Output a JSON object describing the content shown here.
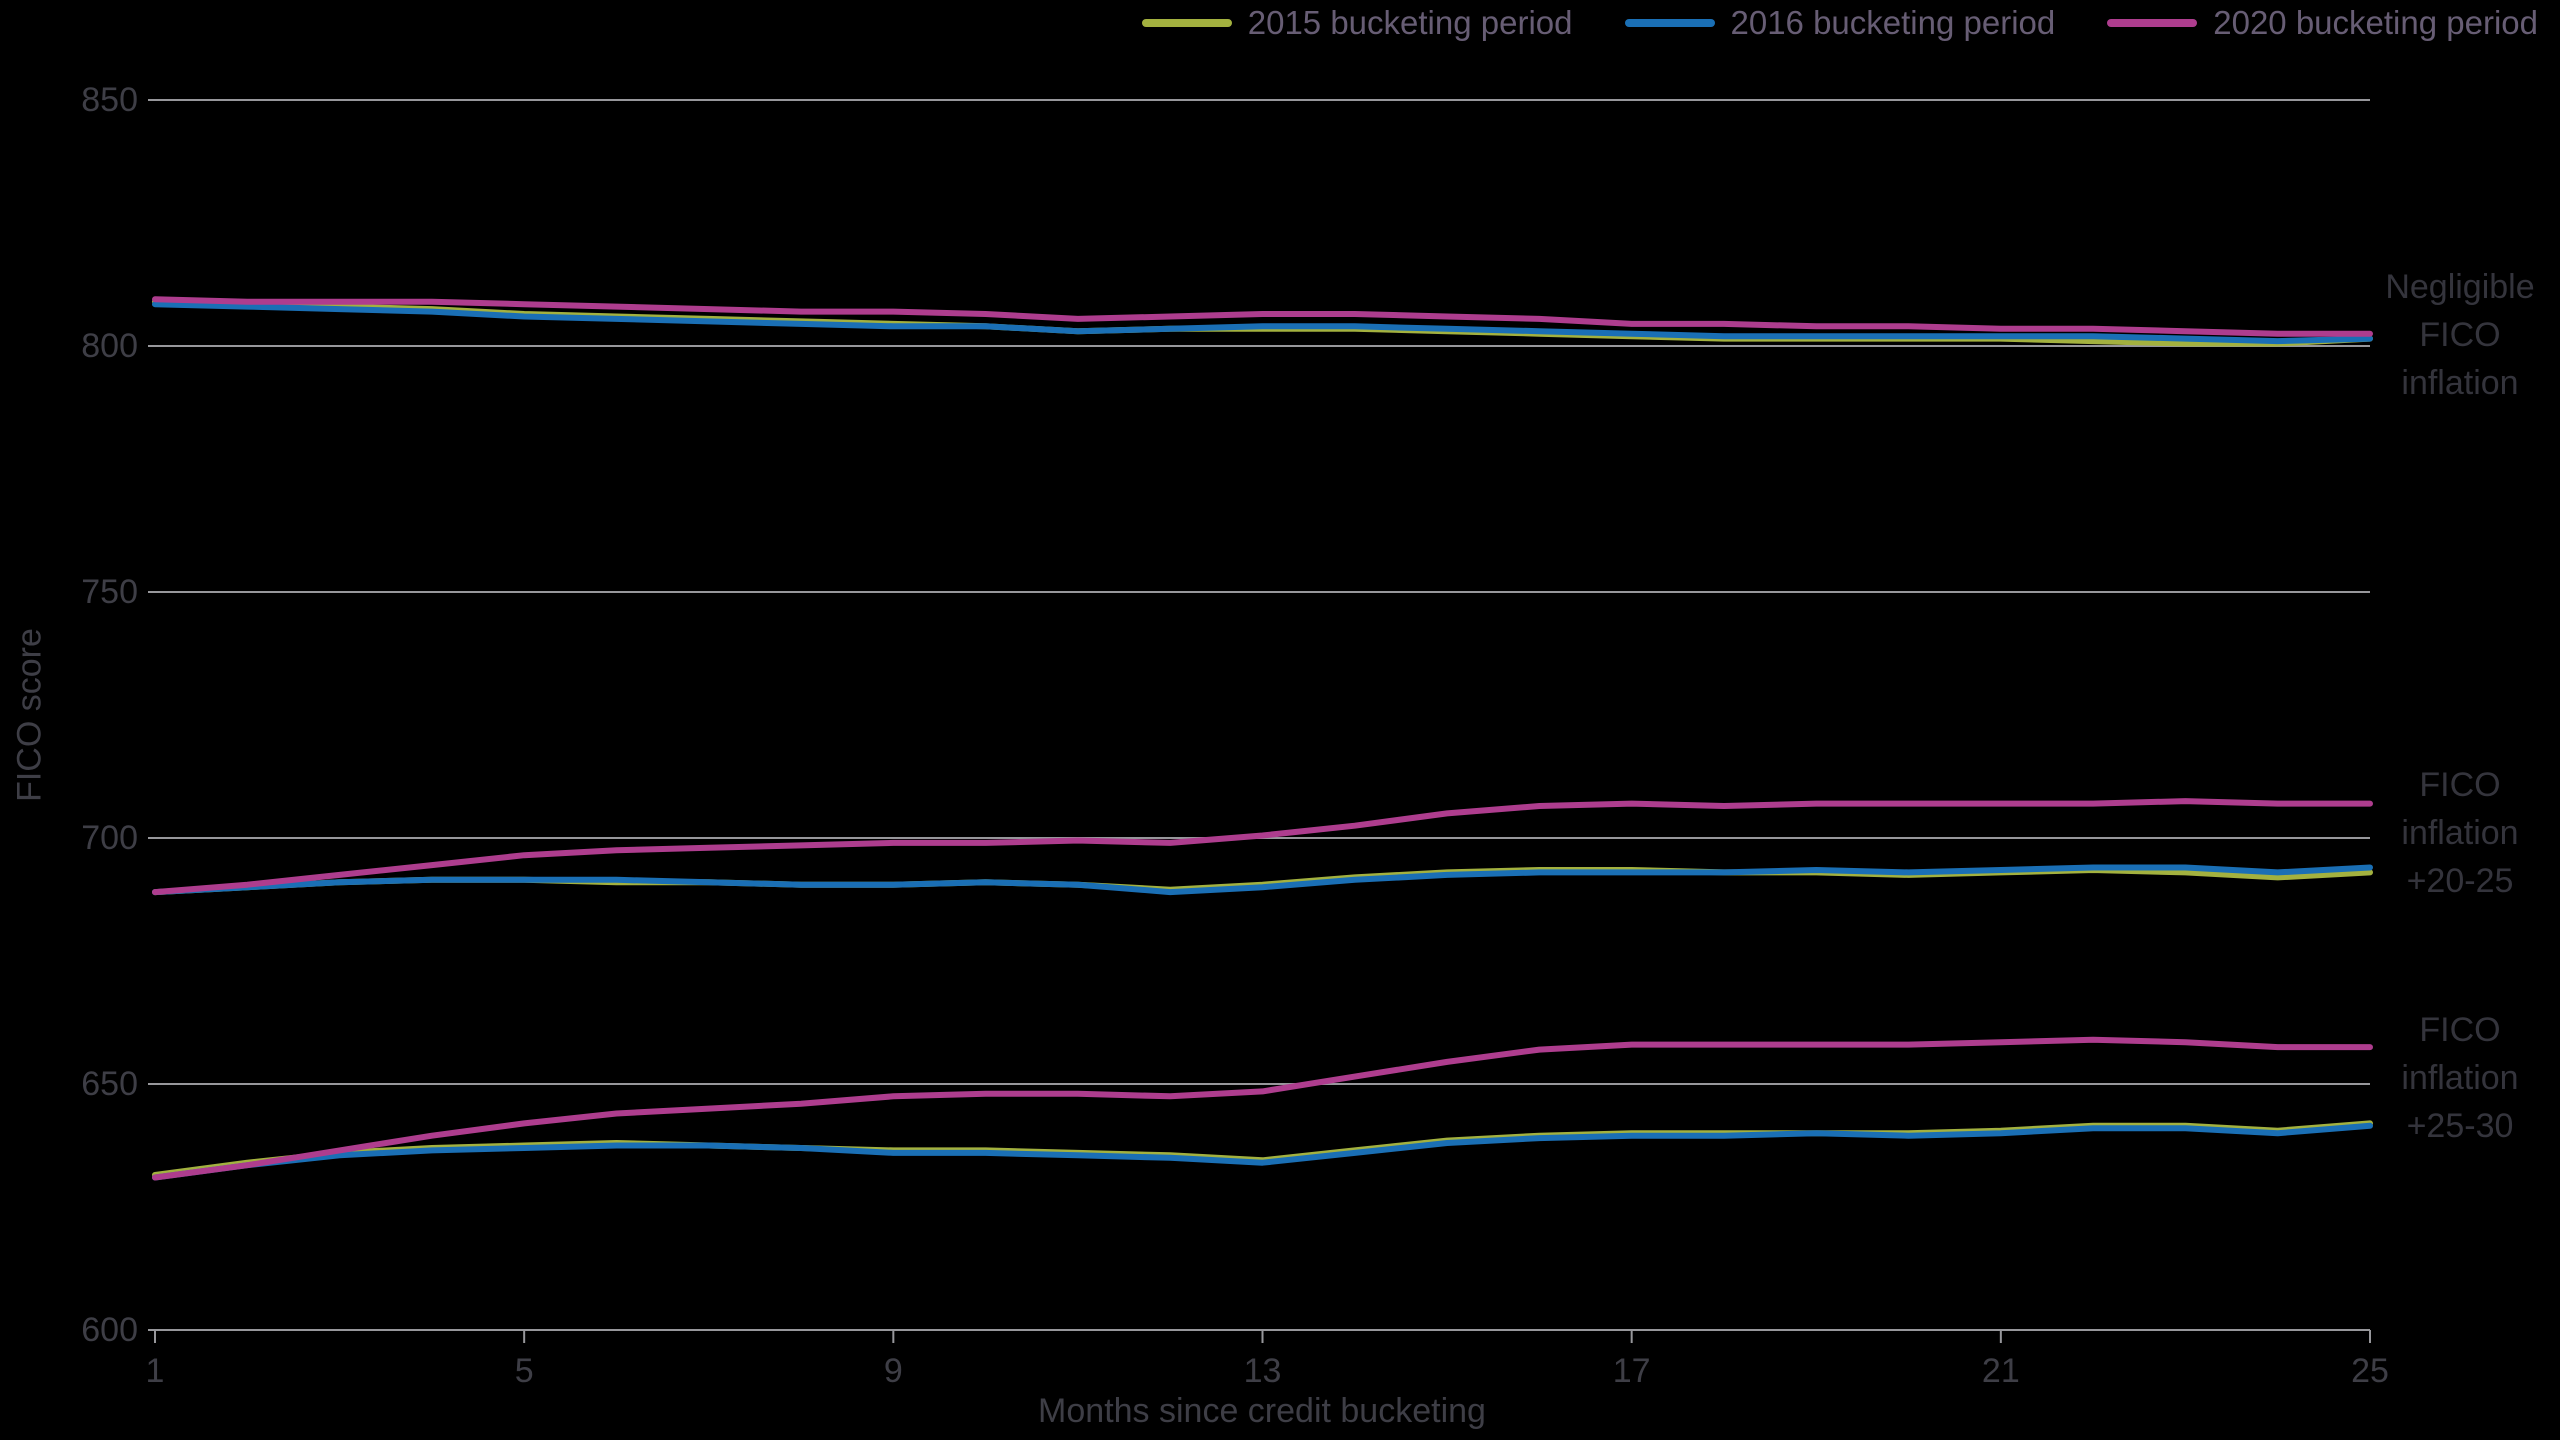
{
  "colors": {
    "background": "#000000",
    "grid": "#97979b",
    "axis_text": "#3e3e46",
    "annotation_text": "#34343c",
    "legend_text": "#675d74",
    "series_2015": "#a3b13f",
    "series_2016": "#1a6fb5",
    "series_2020": "#ae3d8e"
  },
  "legend": {
    "items": [
      {
        "label": "2015 bucketing period",
        "color": "#a3b13f"
      },
      {
        "label": "2016 bucketing period",
        "color": "#1a6fb5"
      },
      {
        "label": "2020 bucketing period",
        "color": "#ae3d8e"
      }
    ]
  },
  "axes": {
    "y_label": "FICO score",
    "x_label": "Months since credit bucketing",
    "y_ticks": [
      850,
      800,
      750,
      700,
      650,
      600
    ],
    "x_ticks": [
      1,
      5,
      9,
      13,
      17,
      21,
      25
    ]
  },
  "annotations": [
    {
      "name": "negligible-fico-inflation",
      "lines": [
        "Negligible",
        "FICO",
        "inflation"
      ]
    },
    {
      "name": "fico-inflation-plus-20-25",
      "lines": [
        "FICO",
        "inflation",
        "+20-25"
      ]
    },
    {
      "name": "fico-inflation-plus-25-30",
      "lines": [
        "FICO",
        "inflation",
        "+25-30"
      ]
    }
  ],
  "chart_data": {
    "type": "line",
    "title": "",
    "xlabel": "Months since credit bucketing",
    "ylabel": "FICO score",
    "xlim": [
      1,
      25
    ],
    "ylim": [
      600,
      850
    ],
    "grid": "horizontal",
    "legend_position": "top-right",
    "x": [
      1,
      2,
      3,
      4,
      5,
      6,
      7,
      8,
      9,
      10,
      11,
      12,
      13,
      14,
      15,
      16,
      17,
      18,
      19,
      20,
      21,
      22,
      23,
      24,
      25
    ],
    "groups": [
      {
        "label": "Negligible FICO inflation",
        "series": [
          {
            "name": "2015 bucketing period",
            "color": "#a3b13f",
            "values": [
              809,
              808.5,
              808,
              807.5,
              806.5,
              806,
              805.5,
              805,
              804.5,
              804,
              803,
              803.5,
              803.5,
              803.5,
              803,
              802.5,
              802,
              801.5,
              801.5,
              801.5,
              801.5,
              801,
              800.5,
              800.5,
              801.5
            ]
          },
          {
            "name": "2016 bucketing period",
            "color": "#1a6fb5",
            "values": [
              808.5,
              808,
              807.5,
              807,
              806,
              805.5,
              805,
              804.5,
              804,
              804,
              803,
              803.5,
              804,
              804,
              803.5,
              803,
              802.5,
              802,
              802,
              802,
              802,
              802,
              801.5,
              801,
              801.5
            ]
          },
          {
            "name": "2020 bucketing period",
            "color": "#ae3d8e",
            "values": [
              809.5,
              809,
              809,
              809,
              808.5,
              808,
              807.5,
              807,
              807,
              806.5,
              805.5,
              806,
              806.5,
              806.5,
              806,
              805.5,
              804.5,
              804.5,
              804,
              804,
              803.5,
              803.5,
              803,
              802.5,
              802.5
            ]
          }
        ]
      },
      {
        "label": "FICO inflation +20-25",
        "series": [
          {
            "name": "2015 bucketing period",
            "color": "#a3b13f",
            "values": [
              689,
              690,
              691,
              691.5,
              691.5,
              691,
              691,
              690.5,
              690.5,
              691,
              690.5,
              689.5,
              690.5,
              692,
              693,
              693.5,
              693.5,
              693,
              693,
              692.5,
              693,
              693.5,
              693,
              692,
              693
            ]
          },
          {
            "name": "2016 bucketing period",
            "color": "#1a6fb5",
            "values": [
              689,
              690,
              691,
              691.5,
              691.5,
              691.5,
              691,
              690.5,
              690.5,
              691,
              690.5,
              689,
              690,
              691.5,
              692.5,
              693,
              693,
              693,
              693.5,
              693,
              693.5,
              694,
              694,
              693,
              694
            ]
          },
          {
            "name": "2020 bucketing period",
            "color": "#ae3d8e",
            "values": [
              689,
              690.5,
              692.5,
              694.5,
              696.5,
              697.5,
              698,
              698.5,
              699,
              699,
              699.5,
              699,
              700.5,
              702.5,
              705,
              706.5,
              707,
              706.5,
              707,
              707,
              707,
              707,
              707.5,
              707,
              707
            ]
          }
        ]
      },
      {
        "label": "FICO inflation +25-30",
        "series": [
          {
            "name": "2015 bucketing period",
            "color": "#a3b13f",
            "values": [
              631.5,
              634,
              636,
              637,
              637.5,
              638,
              637.5,
              637,
              636.5,
              636.5,
              636,
              635.5,
              634.5,
              636.5,
              638.5,
              639.5,
              640,
              640,
              640,
              640,
              640.5,
              641.5,
              641.5,
              640.5,
              642
            ]
          },
          {
            "name": "2016 bucketing period",
            "color": "#1a6fb5",
            "values": [
              631,
              633.5,
              635.5,
              636.5,
              637,
              637.5,
              637.5,
              637,
              636,
              636,
              635.5,
              635,
              634,
              636,
              638,
              639,
              639.5,
              639.5,
              640,
              639.5,
              640,
              641,
              641,
              640,
              641.5
            ]
          },
          {
            "name": "2020 bucketing period",
            "color": "#ae3d8e",
            "values": [
              631,
              633.5,
              636.5,
              639.5,
              642,
              644,
              645,
              646,
              647.5,
              648,
              648,
              647.5,
              648.5,
              651.5,
              654.5,
              657,
              658,
              658,
              658,
              658,
              658.5,
              659,
              658.5,
              657.5,
              657.5
            ]
          }
        ]
      }
    ]
  }
}
